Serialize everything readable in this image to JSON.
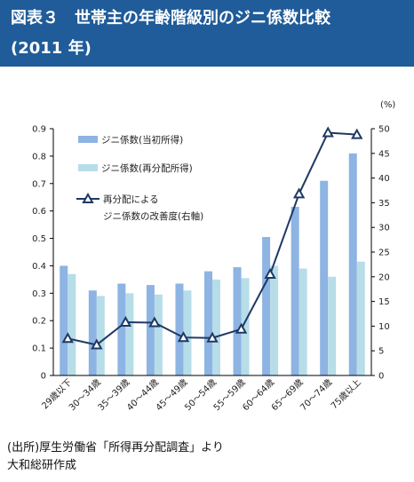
{
  "header": {
    "title": "図表３　世帯主の年齢階級別のジニ係数比較",
    "subtitle": "(2011 年)",
    "bg_color": "#1f5c99"
  },
  "chart_data": {
    "type": "bar",
    "categories": [
      "29歳以下",
      "30～34歳",
      "35～39歳",
      "40～44歳",
      "45～49歳",
      "50～54歳",
      "55～59歳",
      "60～64歳",
      "65～69歳",
      "70～74歳",
      "75歳以上"
    ],
    "series": [
      {
        "name": "ジニ係数(当初所得)",
        "axis": "left",
        "kind": "bar",
        "color": "#8db4e2",
        "values": [
          0.4,
          0.31,
          0.335,
          0.33,
          0.335,
          0.38,
          0.395,
          0.505,
          0.615,
          0.71,
          0.81
        ]
      },
      {
        "name": "ジニ係数(再分配所得)",
        "axis": "left",
        "kind": "bar",
        "color": "#b7dde8",
        "values": [
          0.37,
          0.29,
          0.3,
          0.295,
          0.31,
          0.35,
          0.355,
          0.4,
          0.39,
          0.36,
          0.415
        ]
      },
      {
        "name": "再分配による\nジニ係数の改善度(右軸)",
        "axis": "right",
        "kind": "line",
        "color": "#1f3864",
        "values": [
          7.5,
          6.2,
          10.8,
          10.7,
          7.7,
          7.6,
          9.4,
          20.5,
          36.8,
          49.2,
          48.8
        ]
      }
    ],
    "y_left": {
      "range": [
        0,
        0.9
      ],
      "ticks": [
        "0",
        "0.1",
        "0.2",
        "0.3",
        "0.4",
        "0.5",
        "0.6",
        "0.7",
        "0.8",
        "0.9"
      ]
    },
    "y_right": {
      "range": [
        0,
        50
      ],
      "unit": "(%)",
      "ticks": [
        "0",
        "5",
        "10",
        "15",
        "20",
        "25",
        "30",
        "35",
        "40",
        "45",
        "50"
      ]
    },
    "legend": {
      "placement": "top-left",
      "items": [
        {
          "label": "ジニ係数(当初所得)",
          "marker": "bar",
          "color": "#8db4e2"
        },
        {
          "label": "ジニ係数(再分配所得)",
          "marker": "bar",
          "color": "#b7dde8"
        },
        {
          "label_lines": [
            "再分配による",
            "ジニ係数の改善度(右軸)"
          ],
          "marker": "line",
          "color": "#1f3864"
        }
      ]
    }
  },
  "source": {
    "line1": "(出所)厚生労働省「所得再分配調査」より",
    "line2": "大和総研作成"
  }
}
